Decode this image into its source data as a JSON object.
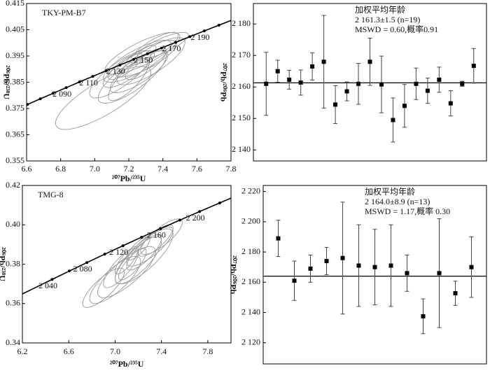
{
  "chart_data": [
    {
      "type": "concordia",
      "sample": "TKY-PM-B7",
      "x_label": "²⁰⁷Pb/²³⁵U",
      "y_label": "²⁰⁶Pb/²³⁸U",
      "xlim": [
        6.6,
        7.8
      ],
      "xticks": [
        6.6,
        6.8,
        {
          "value": 7,
          "label": "7.0"
        },
        7.2,
        7.4,
        7.6,
        7.8
      ],
      "ylim": [
        0.355,
        0.415
      ],
      "yticks": [
        0.355,
        0.365,
        0.375,
        0.385,
        0.395,
        0.405,
        0.415
      ],
      "concordia": {
        "x": [
          6.6049,
          6.6802,
          6.7562,
          6.8329,
          6.9105,
          6.9887,
          7.0678,
          7.1477,
          7.2283,
          7.3097,
          7.392,
          7.475,
          7.5589,
          7.6436,
          7.7292
        ],
        "y": [
          0.37652,
          0.37866,
          0.3808,
          0.38294,
          0.38509,
          0.38724,
          0.38939,
          0.39155,
          0.39371,
          0.39587,
          0.39804,
          0.40021,
          0.40238,
          0.40456,
          0.40674
        ],
        "labels": [
          null,
          null,
          null,
          "2 090",
          null,
          "2 110",
          null,
          "2 130",
          null,
          "2 150",
          null,
          "2 170",
          null,
          "2 190",
          null
        ]
      },
      "ellipses": [
        {
          "x": 7.25,
          "y": 0.393,
          "sx": 0.2,
          "sy": 0.008,
          "rho": 0.8
        },
        {
          "x": 7.3,
          "y": 0.394,
          "sx": 0.18,
          "sy": 0.007,
          "rho": 0.8
        },
        {
          "x": 7.2,
          "y": 0.39,
          "sx": 0.15,
          "sy": 0.007,
          "rho": 0.8
        },
        {
          "x": 7.28,
          "y": 0.396,
          "sx": 0.22,
          "sy": 0.008,
          "rho": 0.8
        },
        {
          "x": 7.15,
          "y": 0.388,
          "sx": 0.18,
          "sy": 0.009,
          "rho": 0.8
        },
        {
          "x": 7.35,
          "y": 0.398,
          "sx": 0.14,
          "sy": 0.006,
          "rho": 0.8
        },
        {
          "x": 7.22,
          "y": 0.387,
          "sx": 0.2,
          "sy": 0.01,
          "rho": 0.8
        },
        {
          "x": 7.05,
          "y": 0.379,
          "sx": 0.28,
          "sy": 0.012,
          "rho": 0.8
        },
        {
          "x": 7.3,
          "y": 0.392,
          "sx": 0.12,
          "sy": 0.006,
          "rho": 0.8
        },
        {
          "x": 7.4,
          "y": 0.399,
          "sx": 0.15,
          "sy": 0.005,
          "rho": 0.8
        },
        {
          "x": 7.18,
          "y": 0.391,
          "sx": 0.1,
          "sy": 0.005,
          "rho": 0.8
        },
        {
          "x": 7.26,
          "y": 0.389,
          "sx": 0.17,
          "sy": 0.008,
          "rho": 0.8
        },
        {
          "x": 7.33,
          "y": 0.393,
          "sx": 0.2,
          "sy": 0.009,
          "rho": 0.8
        },
        {
          "x": 7.2,
          "y": 0.386,
          "sx": 0.12,
          "sy": 0.008,
          "rho": 0.8
        },
        {
          "x": 7.27,
          "y": 0.395,
          "sx": 0.09,
          "sy": 0.004,
          "rho": 0.8
        }
      ]
    },
    {
      "type": "weighted-mean",
      "y_label": "²⁰⁷Pb/²⁰⁶Pb",
      "annotations": [
        "加权平均年龄",
        "2 161.3±1.5 (n=19)",
        "MSWD = 0.60,概率0.91"
      ],
      "mean": 2161.3,
      "ylim": [
        2136.5,
        2186.5
      ],
      "yticks": [
        {
          "value": 2140,
          "label": "2 140"
        },
        {
          "value": 2150,
          "label": "2 150"
        },
        {
          "value": 2160,
          "label": "2 160"
        },
        {
          "value": 2170,
          "label": "2 170"
        },
        {
          "value": 2180,
          "label": "2 180"
        }
      ],
      "values": [
        2161,
        2165,
        2162.3,
        2161.4,
        2166.5,
        2168,
        2154.4,
        2158.6,
        2161,
        2168,
        2160.8,
        2149.5,
        2154,
        2161,
        2158.8,
        2162.3,
        2154.8,
        2161,
        2166.7
      ],
      "errors": [
        10,
        3.5,
        3,
        4,
        4.3,
        14.7,
        6,
        3,
        6.5,
        7.5,
        9,
        7,
        6.8,
        5,
        4,
        4,
        4,
        0.8,
        5.5
      ]
    },
    {
      "type": "concordia",
      "sample": "TMG-8",
      "x_label": "²⁰⁷Pb/²³⁵U",
      "y_label": "²⁰⁶Pb/²³⁸U",
      "xlim": [
        6.2,
        8.0
      ],
      "xticks": [
        6.2,
        6.6,
        {
          "value": 7,
          "label": "7.0"
        },
        7.4,
        7.8
      ],
      "ylim": [
        0.34,
        0.42
      ],
      "yticks": [
        0.34,
        0.36,
        0.38,
        {
          "value": 0.4,
          "label": "0.40"
        },
        0.42
      ],
      "concordia": {
        "x": [
          6.4565,
          6.6049,
          6.7562,
          6.9105,
          7.0678,
          7.2283,
          7.392,
          7.5589,
          7.7292,
          7.9029
        ],
        "y": [
          0.37226,
          0.37652,
          0.3808,
          0.38509,
          0.38939,
          0.39371,
          0.39804,
          0.40238,
          0.40674,
          0.41111
        ],
        "labels": [
          "2 040",
          null,
          "2 080",
          null,
          "2 120",
          null,
          "2 160",
          null,
          "2 200",
          null
        ]
      },
      "ellipses": [
        {
          "x": 7.1,
          "y": 0.376,
          "sx": 0.25,
          "sy": 0.013,
          "rho": 0.8
        },
        {
          "x": 7.2,
          "y": 0.382,
          "sx": 0.2,
          "sy": 0.012,
          "rho": 0.8
        },
        {
          "x": 7.25,
          "y": 0.386,
          "sx": 0.15,
          "sy": 0.009,
          "rho": 0.8
        },
        {
          "x": 7.3,
          "y": 0.389,
          "sx": 0.2,
          "sy": 0.01,
          "rho": 0.8
        },
        {
          "x": 7.0,
          "y": 0.372,
          "sx": 0.22,
          "sy": 0.012,
          "rho": 0.8
        },
        {
          "x": 7.15,
          "y": 0.38,
          "sx": 0.12,
          "sy": 0.008,
          "rho": 0.8
        },
        {
          "x": 7.35,
          "y": 0.392,
          "sx": 0.15,
          "sy": 0.008,
          "rho": 0.8
        },
        {
          "x": 7.05,
          "y": 0.378,
          "sx": 0.15,
          "sy": 0.01,
          "rho": 0.8
        },
        {
          "x": 7.25,
          "y": 0.384,
          "sx": 0.25,
          "sy": 0.014,
          "rho": 0.8
        },
        {
          "x": 7.2,
          "y": 0.388,
          "sx": 0.1,
          "sy": 0.006,
          "rho": 0.8
        },
        {
          "x": 6.9,
          "y": 0.368,
          "sx": 0.18,
          "sy": 0.01,
          "rho": 0.8
        },
        {
          "x": 7.4,
          "y": 0.394,
          "sx": 0.18,
          "sy": 0.009,
          "rho": 0.8
        },
        {
          "x": 7.1,
          "y": 0.382,
          "sx": 0.1,
          "sy": 0.007,
          "rho": 0.8
        }
      ]
    },
    {
      "type": "weighted-mean",
      "y_label": "²⁰⁷Pb/²⁰⁶Pb",
      "annotations": [
        "加权平均年龄",
        "2 164.0±8.9 (n=13)",
        "MSWD = 1.17,概率 0.30"
      ],
      "mean": 2164,
      "ylim": [
        2106,
        2224
      ],
      "yticks": [
        {
          "value": 2120,
          "label": "2 120"
        },
        {
          "value": 2140,
          "label": "2 140"
        },
        {
          "value": 2160,
          "label": "2 160"
        },
        {
          "value": 2180,
          "label": "2 180"
        },
        {
          "value": 2200,
          "label": "2 200"
        },
        {
          "value": 2220,
          "label": "2 220"
        }
      ],
      "values": [
        2189,
        2161,
        2169,
        2174,
        2176,
        2171,
        2170,
        2171,
        2166,
        2137.5,
        2166,
        2152.7,
        2170
      ],
      "errors": [
        12,
        13,
        9,
        9,
        37,
        27,
        25,
        27,
        12,
        11.5,
        36,
        8,
        20
      ]
    }
  ]
}
